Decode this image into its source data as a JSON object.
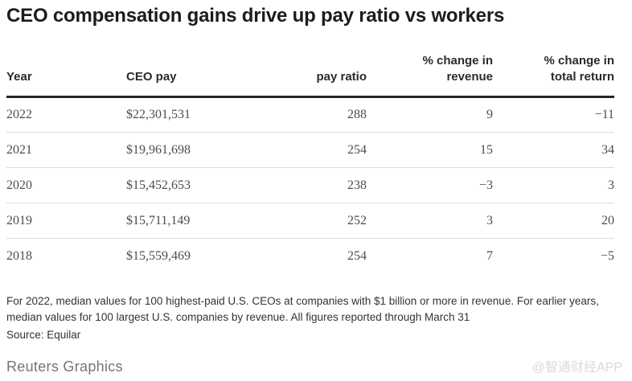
{
  "page": {
    "title": "CEO compensation gains drive up pay ratio vs workers",
    "note": "For 2022, median values for 100 highest-paid U.S. CEOs at companies with $1 billion or more in revenue. For earlier years, median values for 100 largest U.S. companies by revenue. All figures reported through March 31",
    "source": "Source: Equilar",
    "credit": "Reuters Graphics",
    "watermark": "@智通财经APP"
  },
  "table": {
    "columns": [
      {
        "line1": "",
        "line2": "Year"
      },
      {
        "line1": "",
        "line2": "CEO pay"
      },
      {
        "line1": "",
        "line2": "pay ratio"
      },
      {
        "line1": "% change in",
        "line2": "revenue"
      },
      {
        "line1": "% change in",
        "line2": "total return"
      }
    ],
    "rows": [
      {
        "year": "2022",
        "ceo_pay": "$22,301,531",
        "pay_ratio": "288",
        "revenue_change": "9",
        "total_return_change": "−11"
      },
      {
        "year": "2021",
        "ceo_pay": "$19,961,698",
        "pay_ratio": "254",
        "revenue_change": "15",
        "total_return_change": "34"
      },
      {
        "year": "2020",
        "ceo_pay": "$15,452,653",
        "pay_ratio": "238",
        "revenue_change": "−3",
        "total_return_change": "3"
      },
      {
        "year": "2019",
        "ceo_pay": "$15,711,149",
        "pay_ratio": "252",
        "revenue_change": "3",
        "total_return_change": "20"
      },
      {
        "year": "2018",
        "ceo_pay": "$15,559,469",
        "pay_ratio": "254",
        "revenue_change": "7",
        "total_return_change": "−5"
      }
    ]
  },
  "chart_data": {
    "type": "table",
    "title": "CEO compensation gains drive up pay ratio vs workers",
    "columns": [
      "Year",
      "CEO pay",
      "pay ratio",
      "% change in revenue",
      "% change in total return"
    ],
    "rows": [
      [
        2022,
        22301531,
        288,
        9,
        -11
      ],
      [
        2021,
        19961698,
        254,
        15,
        34
      ],
      [
        2020,
        15452653,
        238,
        -3,
        3
      ],
      [
        2019,
        15711149,
        252,
        3,
        20
      ],
      [
        2018,
        15559469,
        254,
        7,
        -5
      ]
    ],
    "note": "For 2022, median values for 100 highest-paid U.S. CEOs at companies with $1 billion or more in revenue. For earlier years, median values for 100 largest U.S. companies by revenue. All figures reported through March 31",
    "source": "Equilar"
  },
  "colors": {
    "title_text": "#1c1c1c",
    "header_text": "#2b2b2b",
    "header_rule": "#252525",
    "body_text": "#4d4d4d",
    "row_divider": "#dcdcdc",
    "note_text": "#333333",
    "credit_text": "#757575",
    "watermark_text": "#d9d9d9",
    "background": "#ffffff"
  }
}
